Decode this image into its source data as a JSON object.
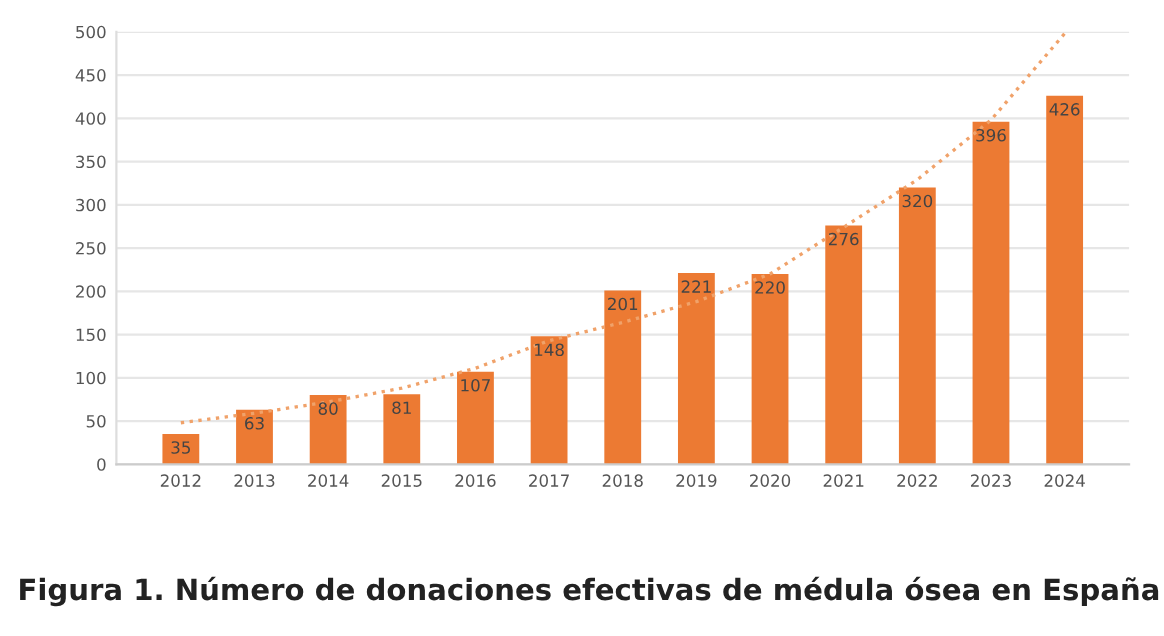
{
  "chart_data": {
    "type": "bar",
    "annotations": [
      "Figura 1. Número de donaciones efectivas de médula ósea en España"
    ],
    "categories": [
      "2012",
      "2013",
      "2014",
      "2015",
      "2016",
      "2017",
      "2018",
      "2019",
      "2020",
      "2021",
      "2022",
      "2023",
      "2024"
    ],
    "series": [
      {
        "color": "#ec7a33",
        "values": [
          35,
          63,
          80,
          81,
          107,
          148,
          201,
          221,
          220,
          276,
          320,
          396,
          426
        ],
        "value_labels": [
          "35",
          "63",
          "80",
          "81",
          "107",
          "148",
          "201",
          "221",
          "220",
          "276",
          "320",
          "396",
          "426"
        ]
      },
      {
        "type": "line",
        "color": "#f0a26a",
        "line_style": "dotted",
        "values": [
          48,
          59,
          72,
          88,
          111,
          143,
          164,
          188,
          220,
          274,
          329,
          398,
          498
        ]
      }
    ],
    "ylim": [
      0,
      500
    ],
    "yticks": [
      0,
      50,
      100,
      150,
      200,
      250,
      300,
      350,
      400,
      450,
      500
    ],
    "grid": "y"
  }
}
